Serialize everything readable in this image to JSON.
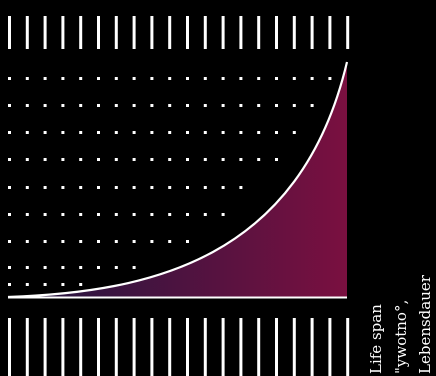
{
  "colors": {
    "background": "#000000",
    "lines": "#ffffff",
    "fill_start": "#1e1640",
    "fill_end": "#7a1040"
  },
  "labels": [
    "Life span",
    "\"ywotno°‚",
    "Lebensdauer"
  ]
}
